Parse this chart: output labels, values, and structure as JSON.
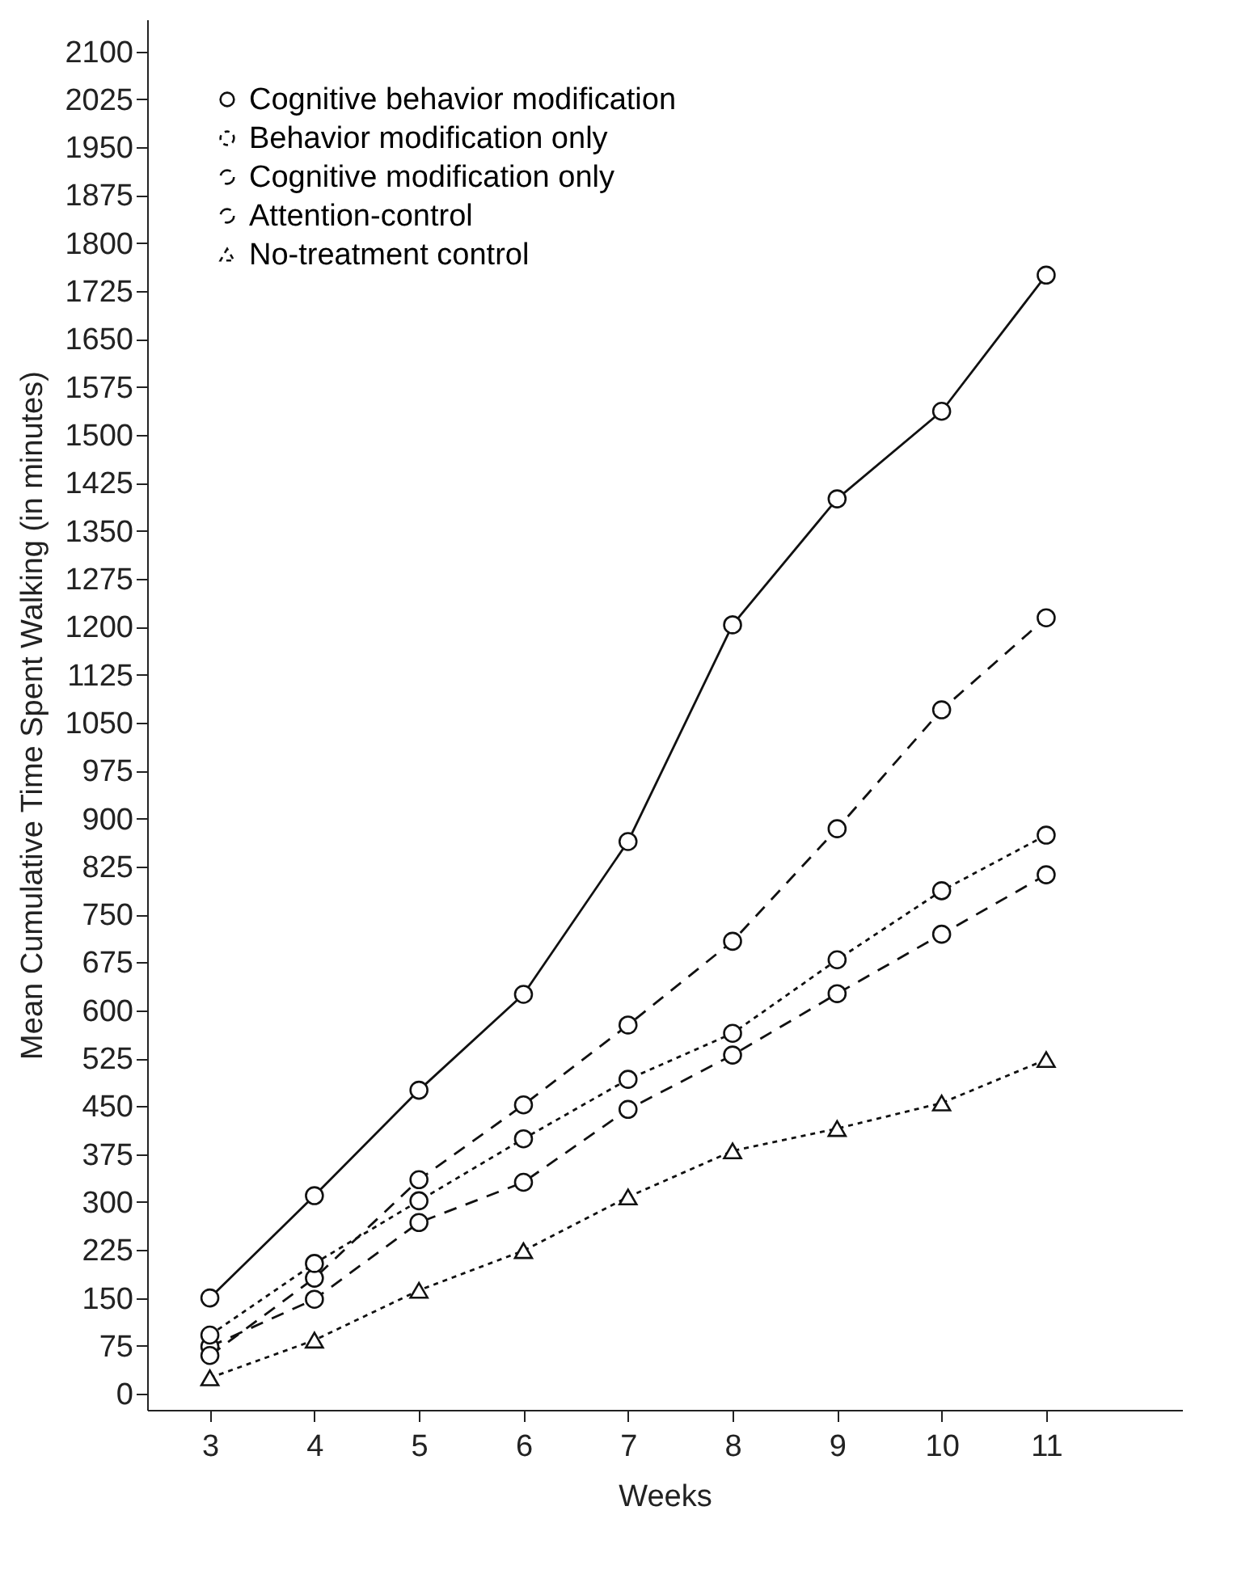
{
  "chart_data": {
    "type": "line",
    "xlabel": "Weeks",
    "ylabel": "Mean Cumulative Time Spent Walking (in minutes)",
    "x": [
      3,
      4,
      5,
      6,
      7,
      8,
      9,
      10,
      11
    ],
    "xlim": [
      2.4,
      12.3
    ],
    "xticks": [
      3,
      4,
      5,
      6,
      7,
      8,
      9,
      10,
      11
    ],
    "ylim": [
      -25,
      2150
    ],
    "yticks": [
      0,
      75,
      150,
      225,
      300,
      375,
      450,
      525,
      600,
      675,
      750,
      825,
      900,
      975,
      1050,
      1125,
      1200,
      1275,
      1350,
      1425,
      1500,
      1575,
      1650,
      1725,
      1800,
      1875,
      1950,
      2025,
      2100
    ],
    "grid": false,
    "legend": "top left",
    "series": [
      {
        "name": "Cognitive behavior modification",
        "color": "#111111",
        "marker": "circle",
        "line_style": "solid",
        "values": [
          150,
          310,
          475,
          625,
          864,
          1203,
          1400,
          1537,
          1750
        ]
      },
      {
        "name": "Behavior modification only",
        "color": "#111111",
        "marker": "circle",
        "line_style": "dotted",
        "values": [
          92,
          204,
          302,
          399,
          492,
          564,
          679,
          787,
          874
        ]
      },
      {
        "name": "Cognitive modification only",
        "color": "#111111",
        "marker": "circle",
        "line_style": "dashed",
        "values": [
          60,
          181,
          335,
          452,
          577,
          708,
          884,
          1070,
          1214
        ]
      },
      {
        "name": "Attention-control",
        "color": "#111111",
        "marker": "circle",
        "line_style": "dashed",
        "values": [
          74,
          148,
          268,
          331,
          445,
          530,
          626,
          719,
          812
        ]
      },
      {
        "name": "No-treatment control",
        "color": "#111111",
        "marker": "triangle",
        "line_style": "dotted",
        "values": [
          25,
          84,
          162,
          224,
          308,
          380,
          415,
          455,
          523
        ]
      }
    ]
  }
}
